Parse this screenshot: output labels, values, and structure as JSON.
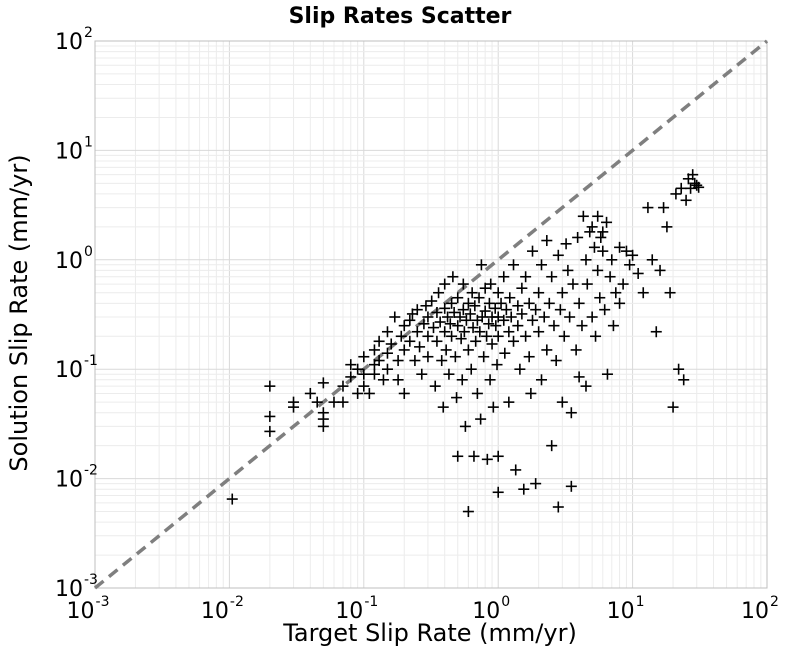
{
  "chart_data": {
    "type": "scatter",
    "title": "Slip Rates Scatter",
    "xlabel": "Target Slip Rate (mm/yr)",
    "ylabel": "Solution Slip Rate (mm/yr)",
    "xscale": "log",
    "yscale": "log",
    "xlim": [
      0.001,
      100
    ],
    "ylim": [
      0.001,
      100
    ],
    "x_ticks": [
      {
        "base": "10",
        "exp": "-3",
        "value": 0.001
      },
      {
        "base": "10",
        "exp": "-2",
        "value": 0.01
      },
      {
        "base": "10",
        "exp": "-1",
        "value": 0.1
      },
      {
        "base": "10",
        "exp": "0",
        "value": 1
      },
      {
        "base": "10",
        "exp": "1",
        "value": 10
      },
      {
        "base": "10",
        "exp": "2",
        "value": 100
      }
    ],
    "y_ticks": [
      {
        "base": "10",
        "exp": "-3",
        "value": 0.001
      },
      {
        "base": "10",
        "exp": "-2",
        "value": 0.01
      },
      {
        "base": "10",
        "exp": "-1",
        "value": 0.1
      },
      {
        "base": "10",
        "exp": "0",
        "value": 1
      },
      {
        "base": "10",
        "exp": "1",
        "value": 10
      },
      {
        "base": "10",
        "exp": "2",
        "value": 100
      }
    ],
    "grid": true,
    "marker": "plus",
    "marker_color": "#000000",
    "reference_line": {
      "style": "dashed",
      "color": "#7f7f7f",
      "from": [
        0.001,
        0.001
      ],
      "to": [
        100,
        100
      ]
    },
    "points": [
      [
        0.0105,
        0.0065
      ],
      [
        0.02,
        0.07
      ],
      [
        0.02,
        0.037
      ],
      [
        0.02,
        0.027
      ],
      [
        0.03,
        0.05
      ],
      [
        0.03,
        0.045
      ],
      [
        0.04,
        0.06
      ],
      [
        0.045,
        0.05
      ],
      [
        0.05,
        0.04
      ],
      [
        0.05,
        0.035
      ],
      [
        0.05,
        0.03
      ],
      [
        0.05,
        0.075
      ],
      [
        0.06,
        0.05
      ],
      [
        0.07,
        0.07
      ],
      [
        0.07,
        0.05
      ],
      [
        0.08,
        0.085
      ],
      [
        0.08,
        0.11
      ],
      [
        0.09,
        0.1
      ],
      [
        0.09,
        0.06
      ],
      [
        0.1,
        0.13
      ],
      [
        0.1,
        0.09
      ],
      [
        0.1,
        0.07
      ],
      [
        0.11,
        0.06
      ],
      [
        0.12,
        0.15
      ],
      [
        0.12,
        0.11
      ],
      [
        0.12,
        0.09
      ],
      [
        0.13,
        0.18
      ],
      [
        0.13,
        0.12
      ],
      [
        0.14,
        0.08
      ],
      [
        0.15,
        0.22
      ],
      [
        0.15,
        0.14
      ],
      [
        0.15,
        0.1
      ],
      [
        0.16,
        0.17
      ],
      [
        0.17,
        0.3
      ],
      [
        0.18,
        0.12
      ],
      [
        0.18,
        0.08
      ],
      [
        0.19,
        0.2
      ],
      [
        0.2,
        0.25
      ],
      [
        0.2,
        0.15
      ],
      [
        0.2,
        0.06
      ],
      [
        0.22,
        0.28
      ],
      [
        0.22,
        0.18
      ],
      [
        0.23,
        0.32
      ],
      [
        0.24,
        0.12
      ],
      [
        0.25,
        0.35
      ],
      [
        0.25,
        0.22
      ],
      [
        0.26,
        0.16
      ],
      [
        0.27,
        0.09
      ],
      [
        0.28,
        0.26
      ],
      [
        0.29,
        0.38
      ],
      [
        0.3,
        0.2
      ],
      [
        0.3,
        0.3
      ],
      [
        0.3,
        0.13
      ],
      [
        0.32,
        0.42
      ],
      [
        0.33,
        0.24
      ],
      [
        0.34,
        0.07
      ],
      [
        0.35,
        0.33
      ],
      [
        0.35,
        0.18
      ],
      [
        0.36,
        0.5
      ],
      [
        0.37,
        0.27
      ],
      [
        0.38,
        0.12
      ],
      [
        0.39,
        0.045
      ],
      [
        0.4,
        0.22
      ],
      [
        0.4,
        0.36
      ],
      [
        0.4,
        0.6
      ],
      [
        0.41,
        0.15
      ],
      [
        0.42,
        0.3
      ],
      [
        0.43,
        0.09
      ],
      [
        0.44,
        0.26
      ],
      [
        0.45,
        0.4
      ],
      [
        0.45,
        0.2
      ],
      [
        0.46,
        0.7
      ],
      [
        0.47,
        0.33
      ],
      [
        0.48,
        0.13
      ],
      [
        0.49,
        0.055
      ],
      [
        0.5,
        0.25
      ],
      [
        0.5,
        0.45
      ],
      [
        0.5,
        0.016
      ],
      [
        0.52,
        0.3
      ],
      [
        0.53,
        0.19
      ],
      [
        0.54,
        0.08
      ],
      [
        0.55,
        0.35
      ],
      [
        0.55,
        0.6
      ],
      [
        0.56,
        0.22
      ],
      [
        0.57,
        0.03
      ],
      [
        0.58,
        0.28
      ],
      [
        0.6,
        0.4
      ],
      [
        0.6,
        0.15
      ],
      [
        0.6,
        0.005
      ],
      [
        0.62,
        0.32
      ],
      [
        0.63,
        0.1
      ],
      [
        0.64,
        0.5
      ],
      [
        0.65,
        0.24
      ],
      [
        0.66,
        0.016
      ],
      [
        0.67,
        0.38
      ],
      [
        0.68,
        0.18
      ],
      [
        0.7,
        0.28
      ],
      [
        0.7,
        0.06
      ],
      [
        0.72,
        0.45
      ],
      [
        0.73,
        0.22
      ],
      [
        0.74,
        0.035
      ],
      [
        0.75,
        0.9
      ],
      [
        0.76,
        0.3
      ],
      [
        0.78,
        0.13
      ],
      [
        0.8,
        0.34
      ],
      [
        0.8,
        0.55
      ],
      [
        0.82,
        0.2
      ],
      [
        0.83,
        0.015
      ],
      [
        0.85,
        0.26
      ],
      [
        0.86,
        0.4
      ],
      [
        0.87,
        0.08
      ],
      [
        0.88,
        0.6
      ],
      [
        0.9,
        0.3
      ],
      [
        0.9,
        0.17
      ],
      [
        0.92,
        0.045
      ],
      [
        0.95,
        0.36
      ],
      [
        0.96,
        0.25
      ],
      [
        0.98,
        0.11
      ],
      [
        1.0,
        0.5
      ],
      [
        1.0,
        0.3
      ],
      [
        1.0,
        0.2
      ],
      [
        1.0,
        0.016
      ],
      [
        1.0,
        0.0075
      ],
      [
        1.05,
        0.4
      ],
      [
        1.1,
        0.28
      ],
      [
        1.1,
        0.7
      ],
      [
        1.12,
        0.14
      ],
      [
        1.15,
        0.35
      ],
      [
        1.2,
        0.22
      ],
      [
        1.2,
        0.05
      ],
      [
        1.22,
        0.45
      ],
      [
        1.25,
        0.3
      ],
      [
        1.3,
        0.9
      ],
      [
        1.3,
        0.18
      ],
      [
        1.35,
        0.012
      ],
      [
        1.4,
        0.38
      ],
      [
        1.4,
        0.25
      ],
      [
        1.45,
        0.1
      ],
      [
        1.5,
        0.55
      ],
      [
        1.5,
        0.32
      ],
      [
        1.55,
        0.008
      ],
      [
        1.6,
        0.2
      ],
      [
        1.6,
        0.7
      ],
      [
        1.7,
        0.4
      ],
      [
        1.7,
        0.13
      ],
      [
        1.75,
        0.06
      ],
      [
        1.8,
        0.28
      ],
      [
        1.8,
        1.2
      ],
      [
        1.9,
        0.35
      ],
      [
        1.9,
        0.009
      ],
      [
        2.0,
        0.5
      ],
      [
        2.0,
        0.22
      ],
      [
        2.1,
        0.08
      ],
      [
        2.1,
        0.9
      ],
      [
        2.2,
        0.3
      ],
      [
        2.3,
        1.5
      ],
      [
        2.3,
        0.15
      ],
      [
        2.4,
        0.4
      ],
      [
        2.5,
        0.02
      ],
      [
        2.5,
        0.7
      ],
      [
        2.6,
        0.25
      ],
      [
        2.7,
        0.12
      ],
      [
        2.8,
        1.1
      ],
      [
        2.8,
        0.0055
      ],
      [
        2.9,
        0.35
      ],
      [
        3.0,
        0.5
      ],
      [
        3.0,
        0.05
      ],
      [
        3.1,
        0.2
      ],
      [
        3.2,
        1.4
      ],
      [
        3.3,
        0.8
      ],
      [
        3.4,
        0.3
      ],
      [
        3.5,
        0.0085
      ],
      [
        3.5,
        0.04
      ],
      [
        3.6,
        0.6
      ],
      [
        3.8,
        0.15
      ],
      [
        3.9,
        1.6
      ],
      [
        4.0,
        0.4
      ],
      [
        4.0,
        0.085
      ],
      [
        4.2,
        0.25
      ],
      [
        4.3,
        2.5
      ],
      [
        4.5,
        1.0
      ],
      [
        4.5,
        0.07
      ],
      [
        4.6,
        0.6
      ],
      [
        4.8,
        1.8
      ],
      [
        5.0,
        2.0
      ],
      [
        5.0,
        0.3
      ],
      [
        5.2,
        1.3
      ],
      [
        5.3,
        0.2
      ],
      [
        5.5,
        0.8
      ],
      [
        5.5,
        2.5
      ],
      [
        5.7,
        0.45
      ],
      [
        5.8,
        1.6
      ],
      [
        6.0,
        1.8
      ],
      [
        6.0,
        1.2
      ],
      [
        6.2,
        0.35
      ],
      [
        6.4,
        2.2
      ],
      [
        6.5,
        0.09
      ],
      [
        6.8,
        0.7
      ],
      [
        7.0,
        1.0
      ],
      [
        7.2,
        0.25
      ],
      [
        7.5,
        0.5
      ],
      [
        8.0,
        1.3
      ],
      [
        8.0,
        0.4
      ],
      [
        8.5,
        0.6
      ],
      [
        9.0,
        1.2
      ],
      [
        9.5,
        0.9
      ],
      [
        10.0,
        1.1
      ],
      [
        11.0,
        0.75
      ],
      [
        12.0,
        0.5
      ],
      [
        13.0,
        3.0
      ],
      [
        14.0,
        1.0
      ],
      [
        15.0,
        0.22
      ],
      [
        16.0,
        0.8
      ],
      [
        17.0,
        3.0
      ],
      [
        18.0,
        2.0
      ],
      [
        19.0,
        0.5
      ],
      [
        20.0,
        0.045
      ],
      [
        21.0,
        4.0
      ],
      [
        22.0,
        0.1
      ],
      [
        23.0,
        4.5
      ],
      [
        24.0,
        0.08
      ],
      [
        25.0,
        3.5
      ],
      [
        26.0,
        5.5
      ],
      [
        27.0,
        4.5
      ],
      [
        28.0,
        6.0
      ],
      [
        29.0,
        5.0
      ],
      [
        30.0,
        4.8
      ],
      [
        31.0,
        4.6
      ]
    ]
  }
}
